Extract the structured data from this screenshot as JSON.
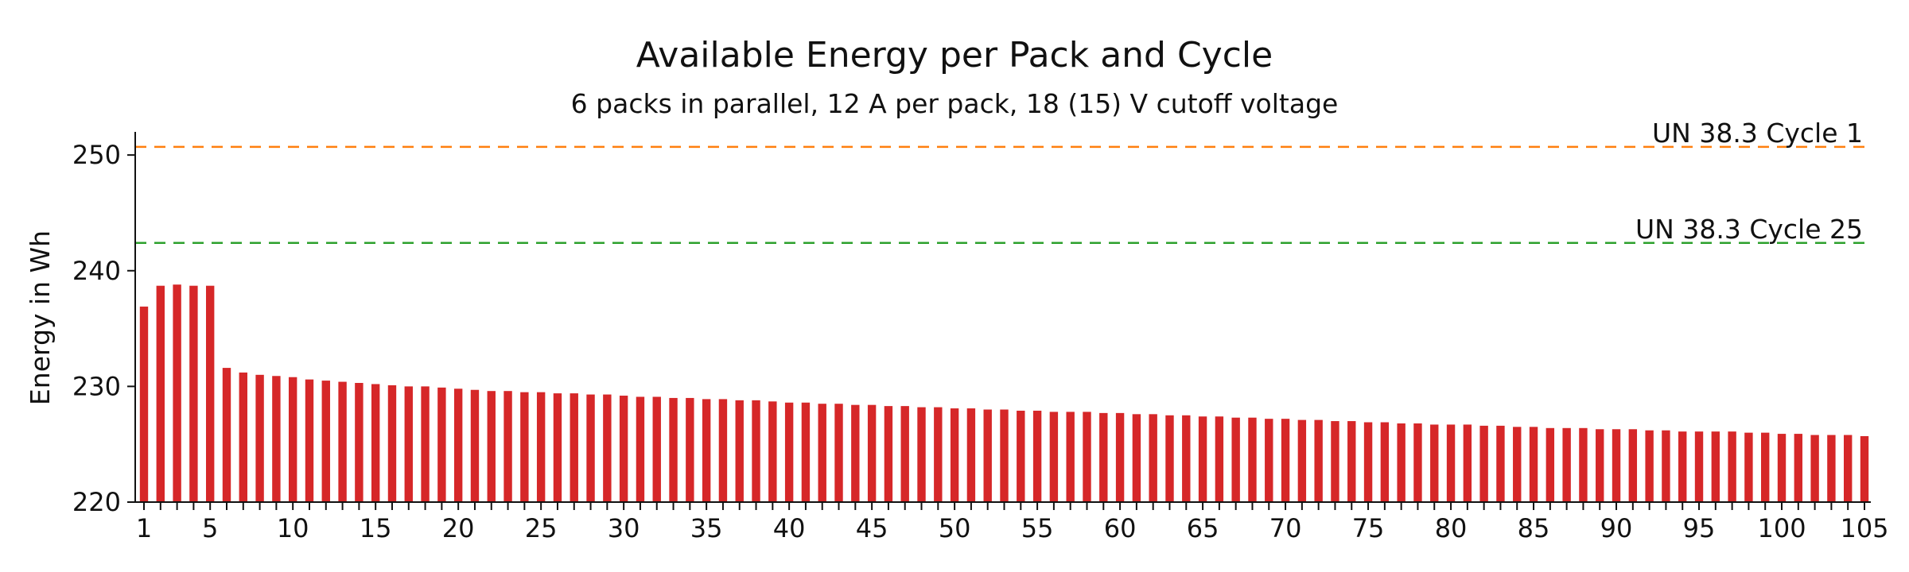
{
  "chart_data": {
    "type": "bar",
    "title": "Available Energy per Pack and Cycle",
    "subtitle": "6 packs in parallel, 12 A per pack, 18 (15) V cutoff voltage",
    "xlabel": "",
    "ylabel": "Energy in Wh",
    "ylim": [
      220,
      252
    ],
    "yticks": [
      220,
      230,
      240,
      250
    ],
    "xtick_labels": [
      "1",
      "5",
      "10",
      "15",
      "20",
      "25",
      "30",
      "35",
      "40",
      "45",
      "50",
      "55",
      "60",
      "65",
      "70",
      "75",
      "80",
      "85",
      "90",
      "95",
      "100",
      "105"
    ],
    "grid": false,
    "colors": {
      "bars": "#d62728",
      "cycle1_line": "#ff7f0e",
      "cycle25_line": "#2ca02c"
    },
    "categories": [
      1,
      2,
      3,
      4,
      5,
      6,
      7,
      8,
      9,
      10,
      11,
      12,
      13,
      14,
      15,
      16,
      17,
      18,
      19,
      20,
      21,
      22,
      23,
      24,
      25,
      26,
      27,
      28,
      29,
      30,
      31,
      32,
      33,
      34,
      35,
      36,
      37,
      38,
      39,
      40,
      41,
      42,
      43,
      44,
      45,
      46,
      47,
      48,
      49,
      50,
      51,
      52,
      53,
      54,
      55,
      56,
      57,
      58,
      59,
      60,
      61,
      62,
      63,
      64,
      65,
      66,
      67,
      68,
      69,
      70,
      71,
      72,
      73,
      74,
      75,
      76,
      77,
      78,
      79,
      80,
      81,
      82,
      83,
      84,
      85,
      86,
      87,
      88,
      89,
      90,
      91,
      92,
      93,
      94,
      95,
      96,
      97,
      98,
      99,
      100,
      101,
      102,
      103,
      104,
      105
    ],
    "values": [
      236.9,
      238.7,
      238.8,
      238.7,
      238.7,
      231.6,
      231.2,
      231.0,
      230.9,
      230.8,
      230.6,
      230.5,
      230.4,
      230.3,
      230.2,
      230.1,
      230.0,
      230.0,
      229.9,
      229.8,
      229.7,
      229.6,
      229.6,
      229.5,
      229.5,
      229.4,
      229.4,
      229.3,
      229.3,
      229.2,
      229.1,
      229.1,
      229.0,
      229.0,
      228.9,
      228.9,
      228.8,
      228.8,
      228.7,
      228.6,
      228.6,
      228.5,
      228.5,
      228.4,
      228.4,
      228.3,
      228.3,
      228.2,
      228.2,
      228.1,
      228.1,
      228.0,
      228.0,
      227.9,
      227.9,
      227.8,
      227.8,
      227.8,
      227.7,
      227.7,
      227.6,
      227.6,
      227.5,
      227.5,
      227.4,
      227.4,
      227.3,
      227.3,
      227.2,
      227.2,
      227.1,
      227.1,
      227.0,
      227.0,
      226.9,
      226.9,
      226.8,
      226.8,
      226.7,
      226.7,
      226.7,
      226.6,
      226.6,
      226.5,
      226.5,
      226.4,
      226.4,
      226.4,
      226.3,
      226.3,
      226.3,
      226.2,
      226.2,
      226.1,
      226.1,
      226.1,
      226.1,
      226.0,
      226.0,
      225.9,
      225.9,
      225.8,
      225.8,
      225.8,
      225.7
    ],
    "reference_lines": [
      {
        "label": "UN 38.3 Cycle 1",
        "value": 250.7
      },
      {
        "label": "UN 38.3 Cycle 25",
        "value": 242.4
      }
    ]
  }
}
